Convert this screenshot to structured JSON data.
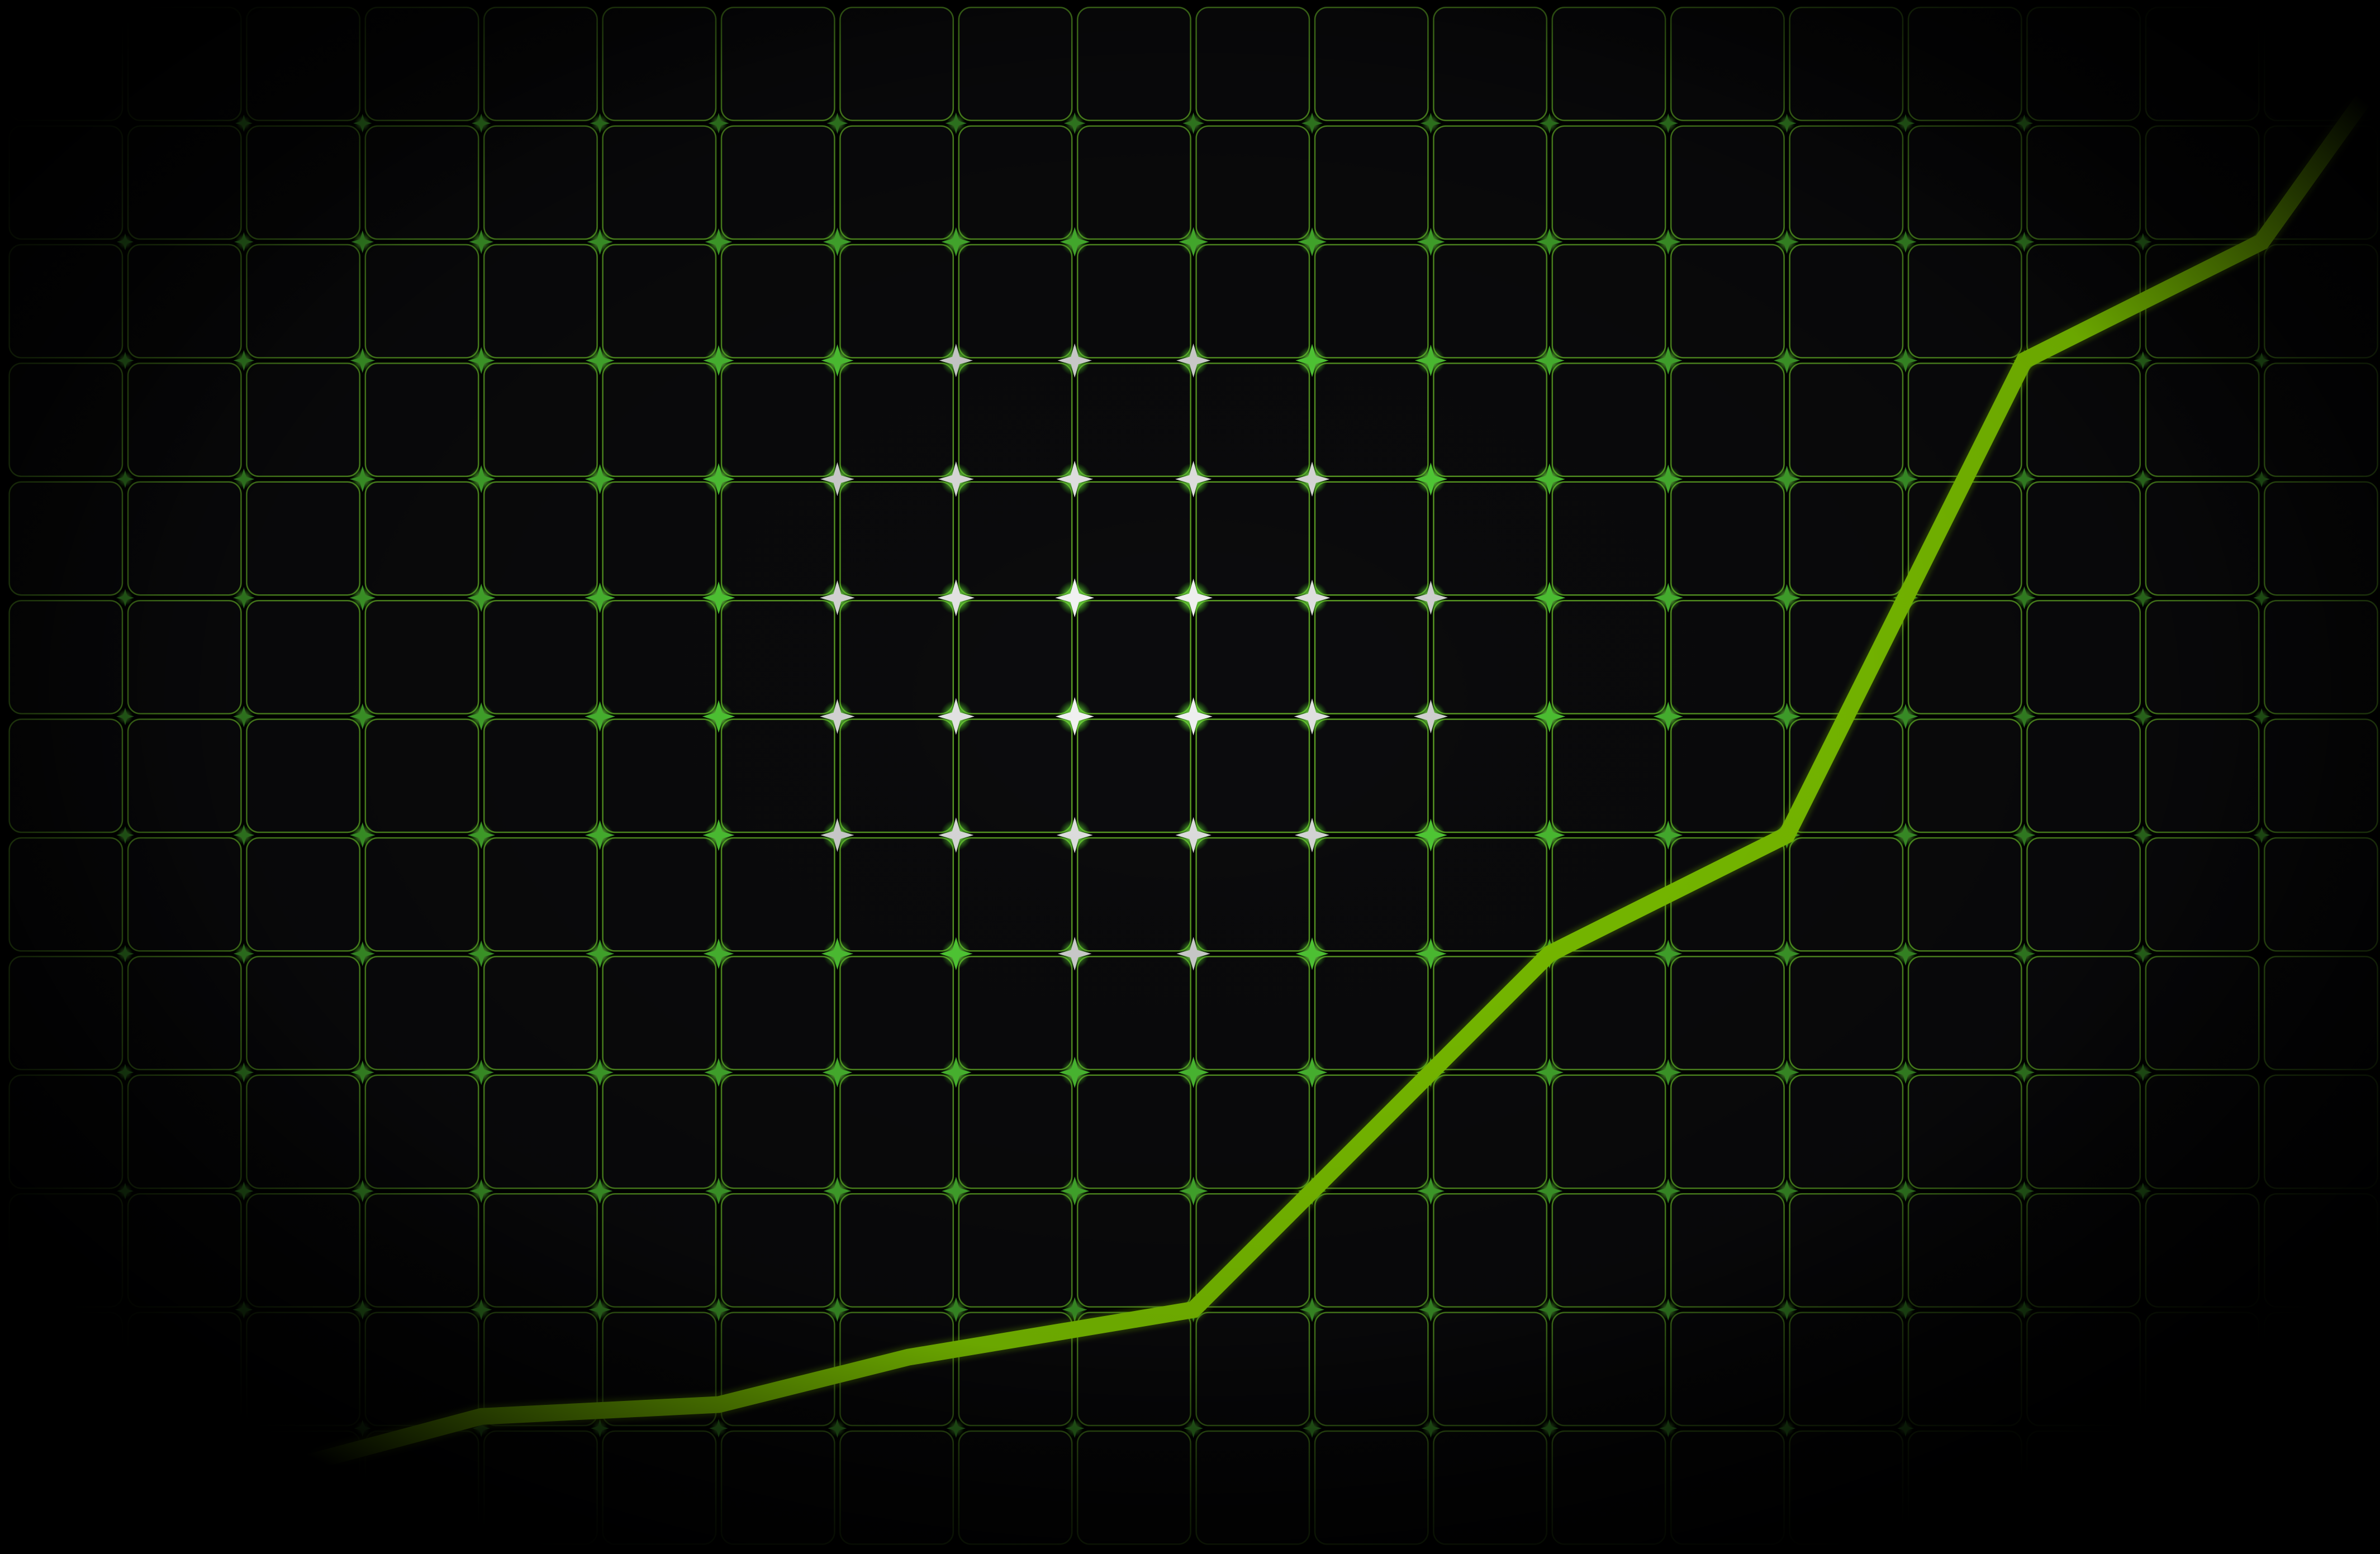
{
  "chart_data": {
    "type": "line",
    "title": "",
    "xlabel": "",
    "ylabel": "",
    "xlim": [
      0,
      19
    ],
    "ylim": [
      0,
      12
    ],
    "grid": true,
    "legend": "none",
    "series": [
      {
        "x": [
          0,
          3,
          5,
          6.6,
          9,
          10.9,
          12,
          14,
          16,
          18,
          19
        ],
        "y": [
          -0.7,
          0.1,
          0.2,
          0.6,
          1.0,
          2.9,
          4.0,
          5.0,
          9.0,
          10.0,
          11.4
        ],
        "color": "#7dc400"
      }
    ],
    "colors": {
      "background": "#000000",
      "panel": "#0b0b0d",
      "grid_line": "#6cbc2a",
      "node_glow": "#66ff44",
      "node_hot": "#ffffff",
      "line": "#7dc400"
    }
  }
}
